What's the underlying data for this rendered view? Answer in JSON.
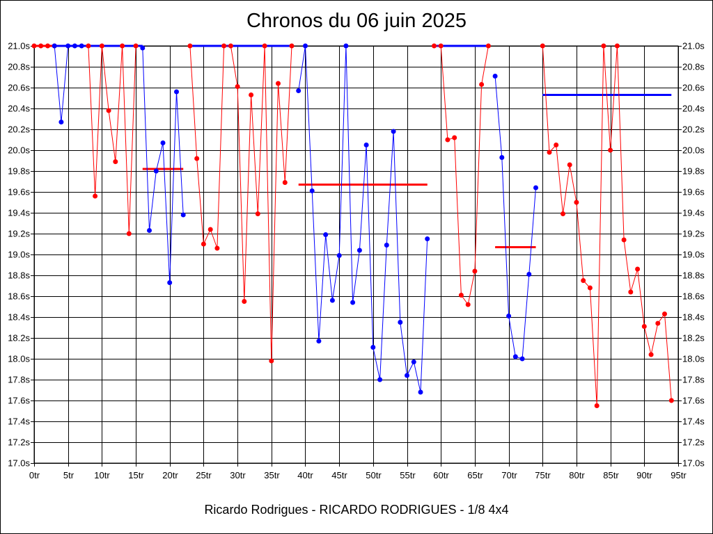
{
  "chart_data": {
    "type": "line",
    "title": "Chronos du 06 juin 2025",
    "footer": "Ricardo Rodrigues - RICARDO RODRIGUES - 1/8 4x4",
    "xlabel": "",
    "ylabel": "",
    "xlim": [
      0,
      95
    ],
    "ylim": [
      17.0,
      21.0
    ],
    "grid": true,
    "y_ticks": [
      17.0,
      17.2,
      17.4,
      17.6,
      17.8,
      18.0,
      18.2,
      18.4,
      18.6,
      18.8,
      19.0,
      19.2,
      19.4,
      19.6,
      19.8,
      20.0,
      20.2,
      20.4,
      20.6,
      20.8,
      21.0
    ],
    "y_tick_labels": [
      "17.0s",
      "17.2s",
      "17.4s",
      "17.6s",
      "17.8s",
      "18.0s",
      "18.2s",
      "18.4s",
      "18.6s",
      "18.8s",
      "19.0s",
      "19.2s",
      "19.4s",
      "19.6s",
      "19.8s",
      "20.0s",
      "20.2s",
      "20.4s",
      "20.6s",
      "20.8s",
      "21.0s"
    ],
    "x_ticks": [
      0,
      5,
      10,
      15,
      20,
      25,
      30,
      35,
      40,
      45,
      50,
      55,
      60,
      65,
      70,
      75,
      80,
      85,
      90,
      95
    ],
    "x_tick_labels": [
      "0tr",
      "5tr",
      "10tr",
      "15tr",
      "20tr",
      "25tr",
      "30tr",
      "35tr",
      "40tr",
      "45tr",
      "50tr",
      "55tr",
      "60tr",
      "65tr",
      "70tr",
      "75tr",
      "80tr",
      "85tr",
      "90tr",
      "95tr"
    ],
    "colors": {
      "red": "#ff0000",
      "blue": "#0000ff",
      "grid": "#000000"
    },
    "segments": [
      {
        "color": "red",
        "points": [
          [
            0,
            21.0
          ],
          [
            1,
            21.0
          ],
          [
            2,
            21.0
          ],
          [
            3,
            21.0
          ]
        ]
      },
      {
        "color": "blue",
        "points": [
          [
            3,
            21.0
          ],
          [
            4,
            20.27
          ],
          [
            5,
            21.0
          ],
          [
            6,
            21.0
          ],
          [
            7,
            21.0
          ]
        ]
      },
      {
        "color": "red",
        "points": [
          [
            8,
            21.0
          ],
          [
            9,
            19.56
          ],
          [
            10,
            21.0
          ],
          [
            11,
            20.38
          ],
          [
            12,
            19.89
          ],
          [
            13,
            21.0
          ],
          [
            14,
            19.2
          ],
          [
            15,
            21.0
          ]
        ]
      },
      {
        "color": "blue",
        "points": [
          [
            16,
            20.98
          ],
          [
            17,
            19.23
          ],
          [
            18,
            19.8
          ],
          [
            19,
            20.07
          ],
          [
            20,
            18.73
          ],
          [
            21,
            20.56
          ],
          [
            22,
            19.38
          ]
        ]
      },
      {
        "color": "red",
        "points": [
          [
            23,
            21.0
          ],
          [
            24,
            19.92
          ],
          [
            25,
            19.1
          ],
          [
            26,
            19.24
          ],
          [
            27,
            19.06
          ],
          [
            28,
            21.0
          ],
          [
            29,
            21.0
          ],
          [
            30,
            20.61
          ],
          [
            31,
            18.55
          ],
          [
            32,
            20.53
          ],
          [
            33,
            19.39
          ],
          [
            34,
            21.0
          ],
          [
            35,
            17.98
          ],
          [
            36,
            20.64
          ],
          [
            37,
            19.69
          ],
          [
            38,
            21.0
          ]
        ]
      },
      {
        "color": "blue",
        "points": [
          [
            39,
            20.57
          ],
          [
            40,
            21.0
          ],
          [
            41,
            19.61
          ],
          [
            42,
            18.17
          ],
          [
            43,
            19.19
          ],
          [
            44,
            18.56
          ],
          [
            45,
            18.99
          ],
          [
            46,
            21.0
          ],
          [
            47,
            18.54
          ],
          [
            48,
            19.04
          ],
          [
            49,
            20.05
          ],
          [
            50,
            18.11
          ],
          [
            51,
            17.8
          ],
          [
            52,
            19.09
          ],
          [
            53,
            20.18
          ],
          [
            54,
            18.35
          ],
          [
            55,
            17.84
          ],
          [
            56,
            17.97
          ],
          [
            57,
            17.68
          ],
          [
            58,
            19.15
          ]
        ]
      },
      {
        "color": "red",
        "points": [
          [
            59,
            21.0
          ],
          [
            60,
            21.0
          ],
          [
            61,
            20.1
          ],
          [
            62,
            20.12
          ],
          [
            63,
            18.61
          ],
          [
            64,
            18.52
          ],
          [
            65,
            18.84
          ],
          [
            66,
            20.63
          ],
          [
            67,
            21.0
          ]
        ]
      },
      {
        "color": "blue",
        "points": [
          [
            68,
            20.71
          ],
          [
            69,
            19.93
          ],
          [
            70,
            18.41
          ],
          [
            71,
            18.02
          ],
          [
            72,
            18.0
          ],
          [
            73,
            18.81
          ],
          [
            74,
            19.64
          ]
        ]
      },
      {
        "color": "red",
        "points": [
          [
            75,
            21.0
          ],
          [
            76,
            19.98
          ],
          [
            77,
            20.05
          ],
          [
            78,
            19.39
          ],
          [
            79,
            19.86
          ],
          [
            80,
            19.5
          ],
          [
            81,
            18.75
          ],
          [
            82,
            18.68
          ],
          [
            83,
            17.55
          ],
          [
            84,
            21.0
          ],
          [
            85,
            20.0
          ],
          [
            86,
            21.0
          ],
          [
            87,
            19.14
          ],
          [
            88,
            18.64
          ],
          [
            89,
            18.86
          ],
          [
            90,
            18.31
          ],
          [
            91,
            18.04
          ],
          [
            92,
            18.34
          ],
          [
            93,
            18.43
          ],
          [
            94,
            17.6
          ]
        ]
      }
    ],
    "averages": [
      {
        "color": "red",
        "x_start": 0,
        "x_end": 15,
        "value": 21.0
      },
      {
        "color": "blue",
        "x_start": 3,
        "x_end": 16,
        "value": 21.0
      },
      {
        "color": "red",
        "x_start": 16,
        "x_end": 22,
        "value": 19.82
      },
      {
        "color": "blue",
        "x_start": 23,
        "x_end": 38,
        "value": 21.0
      },
      {
        "color": "red",
        "x_start": 39,
        "x_end": 58,
        "value": 19.67
      },
      {
        "color": "blue",
        "x_start": 59,
        "x_end": 67,
        "value": 21.0
      },
      {
        "color": "red",
        "x_start": 68,
        "x_end": 74,
        "value": 19.07
      },
      {
        "color": "blue",
        "x_start": 75,
        "x_end": 94,
        "value": 20.53
      }
    ]
  }
}
